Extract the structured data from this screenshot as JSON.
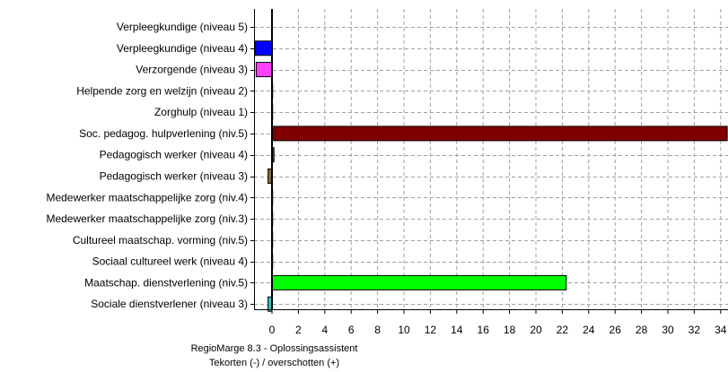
{
  "chart_data": {
    "type": "bar",
    "orientation": "horizontal",
    "title": "",
    "xlabel": "RegioMarge 8.3 - Oplossingsassistent",
    "xlabel_line2": "Tekorten (-) / overschotten (+)",
    "ylabel": "",
    "xlim": [
      -1,
      34
    ],
    "grid": true,
    "legend": "none",
    "x_ticks": [
      "0",
      "2",
      "4",
      "6",
      "8",
      "10",
      "12",
      "14",
      "16",
      "18",
      "20",
      "22",
      "24",
      "26",
      "28",
      "30",
      "32",
      "34"
    ],
    "categories": [
      "Verpleegkundige (niveau 5)",
      "Verpleegkundige (niveau 4)",
      "Verzorgende (niveau 3)",
      "Helpende zorg en welzijn (niveau 2)",
      "Zorghulp (niveau 1)",
      "Soc. pedagog. hulpverlening (niv.5)",
      "Pedagogisch werker (niveau 4)",
      "Pedagogisch werker (niveau 3)",
      "Medewerker maatschappelijke zorg (niv.4)",
      "Medewerker maatschappelijke zorg (niv.3)",
      "Cultureel maatschap. vorming (niv.5)",
      "Sociaal cultureel werk (niveau 4)",
      "Maatschap. dienstverlening (niv.5)",
      "Sociale dienstverlener (niveau 3)"
    ],
    "values": [
      0,
      -1.3,
      -1.2,
      0.05,
      0.05,
      34.5,
      0.15,
      -0.3,
      0.05,
      0.05,
      0.05,
      0.05,
      22.3,
      -0.3
    ],
    "colors": [
      "#000080",
      "#0000ff",
      "#ff40ff",
      "#80ff80",
      "#ff8040",
      "#800000",
      "#404040",
      "#807040",
      "#8080ff",
      "#ffff00",
      "#80c0ff",
      "#ff80ff",
      "#00ff00",
      "#40c0c0"
    ]
  }
}
